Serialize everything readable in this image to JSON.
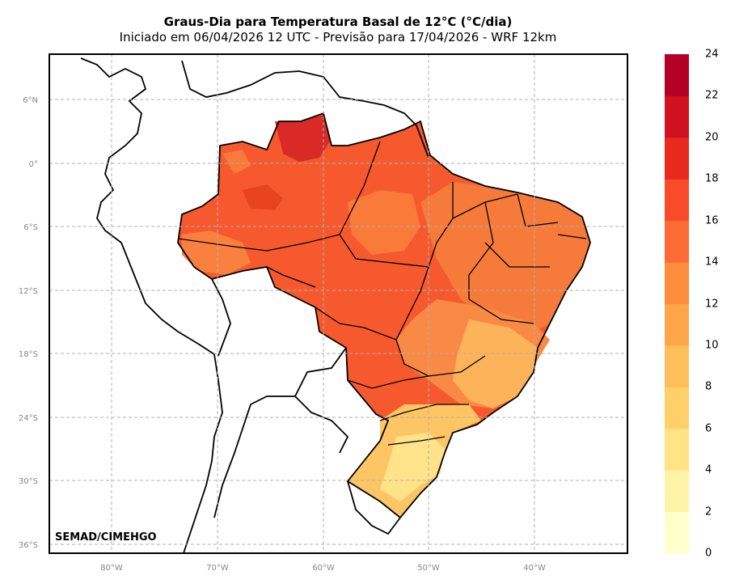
{
  "header": {
    "title": "Graus-Dia para Temperatura Basal de 12°C (°C/dia)",
    "subtitle": "Iniciado em 06/04/2026 12 UTC - Previsão para 17/04/2026 - WRF 12km"
  },
  "credit": "SEMAD/CIMEHGO",
  "map": {
    "lat_labels": [
      "6°N",
      "0°",
      "6°S",
      "12°S",
      "18°S",
      "24°S",
      "30°S",
      "36°S"
    ],
    "lon_labels": [
      "80°W",
      "70°W",
      "60°W",
      "50°W",
      "40°W"
    ],
    "grid": true
  },
  "colorbar": {
    "ticks": [
      "0",
      "2",
      "4",
      "6",
      "8",
      "10",
      "12",
      "14",
      "16",
      "18",
      "20",
      "22",
      "24"
    ],
    "colors": [
      "#ffffcc",
      "#fff3a8",
      "#ffe385",
      "#fed06a",
      "#febf5a",
      "#fea649",
      "#fd8c3c",
      "#fc6b33",
      "#f94a29",
      "#e8291e",
      "#d1111f",
      "#b50026",
      "#8f0028"
    ]
  }
}
